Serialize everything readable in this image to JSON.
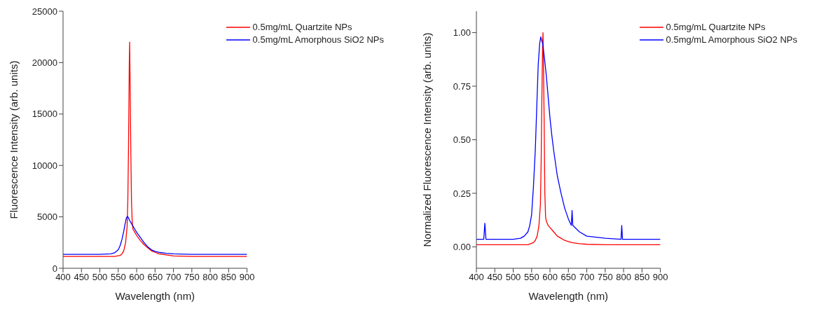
{
  "chart_data": [
    {
      "type": "line",
      "xlabel": "Wavelength (nm)",
      "ylabel": "Fluorescence Intensity (arb. units)",
      "xlim": [
        400,
        900
      ],
      "ylim": [
        0,
        25000
      ],
      "xticks": [
        400,
        450,
        500,
        550,
        600,
        650,
        700,
        750,
        800,
        850,
        900
      ],
      "yticks": [
        0,
        5000,
        10000,
        15000,
        20000,
        25000
      ],
      "legend": "top right",
      "marker": "none",
      "line_style": "solid",
      "series": [
        {
          "name": "0.5mg/mL Quartzite NPs",
          "color": "#ff0000",
          "x": [
            400,
            450,
            500,
            540,
            555,
            560,
            565,
            570,
            574,
            576,
            578,
            580,
            581,
            582,
            584,
            586,
            588,
            590,
            595,
            600,
            610,
            620,
            630,
            640,
            650,
            660,
            680,
            700,
            750,
            800,
            850,
            900
          ],
          "values": [
            1150,
            1150,
            1150,
            1150,
            1250,
            1400,
            1700,
            2500,
            4000,
            6500,
            12000,
            20000,
            22000,
            19000,
            12000,
            6500,
            4500,
            3800,
            3500,
            3200,
            2700,
            2300,
            2000,
            1700,
            1550,
            1400,
            1300,
            1200,
            1150,
            1150,
            1150,
            1150
          ]
        },
        {
          "name": "0.5mg/mL Amorphous SiO2 NPs",
          "color": "#0000ff",
          "x": [
            400,
            450,
            500,
            530,
            540,
            550,
            555,
            560,
            565,
            568,
            572,
            575,
            578,
            580,
            585,
            590,
            595,
            600,
            610,
            620,
            630,
            640,
            650,
            660,
            680,
            700,
            750,
            800,
            850,
            900
          ],
          "values": [
            1350,
            1350,
            1350,
            1400,
            1500,
            1800,
            2200,
            2800,
            3600,
            4200,
            4900,
            5050,
            4900,
            4700,
            4400,
            4100,
            3800,
            3500,
            3000,
            2500,
            2100,
            1800,
            1650,
            1550,
            1450,
            1400,
            1350,
            1350,
            1350,
            1350
          ]
        }
      ]
    },
    {
      "type": "line",
      "xlabel": "Wavelength (nm)",
      "ylabel": "Normalized Fluorescence Intensity (arb. units)",
      "xlim": [
        400,
        900
      ],
      "ylim": [
        -0.1,
        1.1
      ],
      "xticks": [
        400,
        450,
        500,
        550,
        600,
        650,
        700,
        750,
        800,
        850,
        900
      ],
      "yticks": [
        {
          "value": 0,
          "label": "0.00"
        },
        {
          "value": 0.25,
          "label": "0.25"
        },
        {
          "value": 0.5,
          "label": "0.50"
        },
        {
          "value": 0.75,
          "label": "0.75"
        },
        {
          "value": 1,
          "label": "1.00"
        }
      ],
      "legend": "top right",
      "marker": "none",
      "line_style": "solid",
      "series": [
        {
          "name": "0.5mg/mL Quartzite NPs",
          "color": "#ff0000",
          "x": [
            400,
            450,
            500,
            540,
            555,
            560,
            565,
            570,
            574,
            576,
            578,
            580,
            581,
            582,
            584,
            586,
            588,
            590,
            595,
            600,
            610,
            620,
            630,
            640,
            650,
            660,
            680,
            700,
            750,
            800,
            850,
            900
          ],
          "values": [
            0.01,
            0.01,
            0.01,
            0.01,
            0.02,
            0.03,
            0.05,
            0.1,
            0.2,
            0.4,
            0.7,
            0.95,
            1.0,
            0.9,
            0.6,
            0.25,
            0.14,
            0.12,
            0.1,
            0.09,
            0.07,
            0.05,
            0.04,
            0.03,
            0.025,
            0.02,
            0.015,
            0.012,
            0.01,
            0.01,
            0.01,
            0.01
          ]
        },
        {
          "name": "0.5mg/mL Amorphous SiO2 NPs",
          "color": "#0000ff",
          "x": [
            400,
            420,
            423,
            426,
            450,
            500,
            520,
            530,
            540,
            545,
            550,
            555,
            560,
            565,
            568,
            572,
            575,
            578,
            580,
            585,
            590,
            595,
            600,
            605,
            610,
            620,
            630,
            640,
            650,
            658,
            660,
            662,
            680,
            700,
            750,
            793,
            795,
            797,
            850,
            900
          ],
          "values": [
            0.035,
            0.035,
            0.11,
            0.035,
            0.035,
            0.035,
            0.04,
            0.05,
            0.07,
            0.1,
            0.15,
            0.28,
            0.45,
            0.7,
            0.85,
            0.95,
            0.98,
            0.96,
            0.95,
            0.88,
            0.8,
            0.7,
            0.6,
            0.52,
            0.45,
            0.33,
            0.25,
            0.18,
            0.13,
            0.1,
            0.17,
            0.1,
            0.07,
            0.05,
            0.04,
            0.035,
            0.1,
            0.035,
            0.035,
            0.035
          ]
        }
      ]
    }
  ]
}
